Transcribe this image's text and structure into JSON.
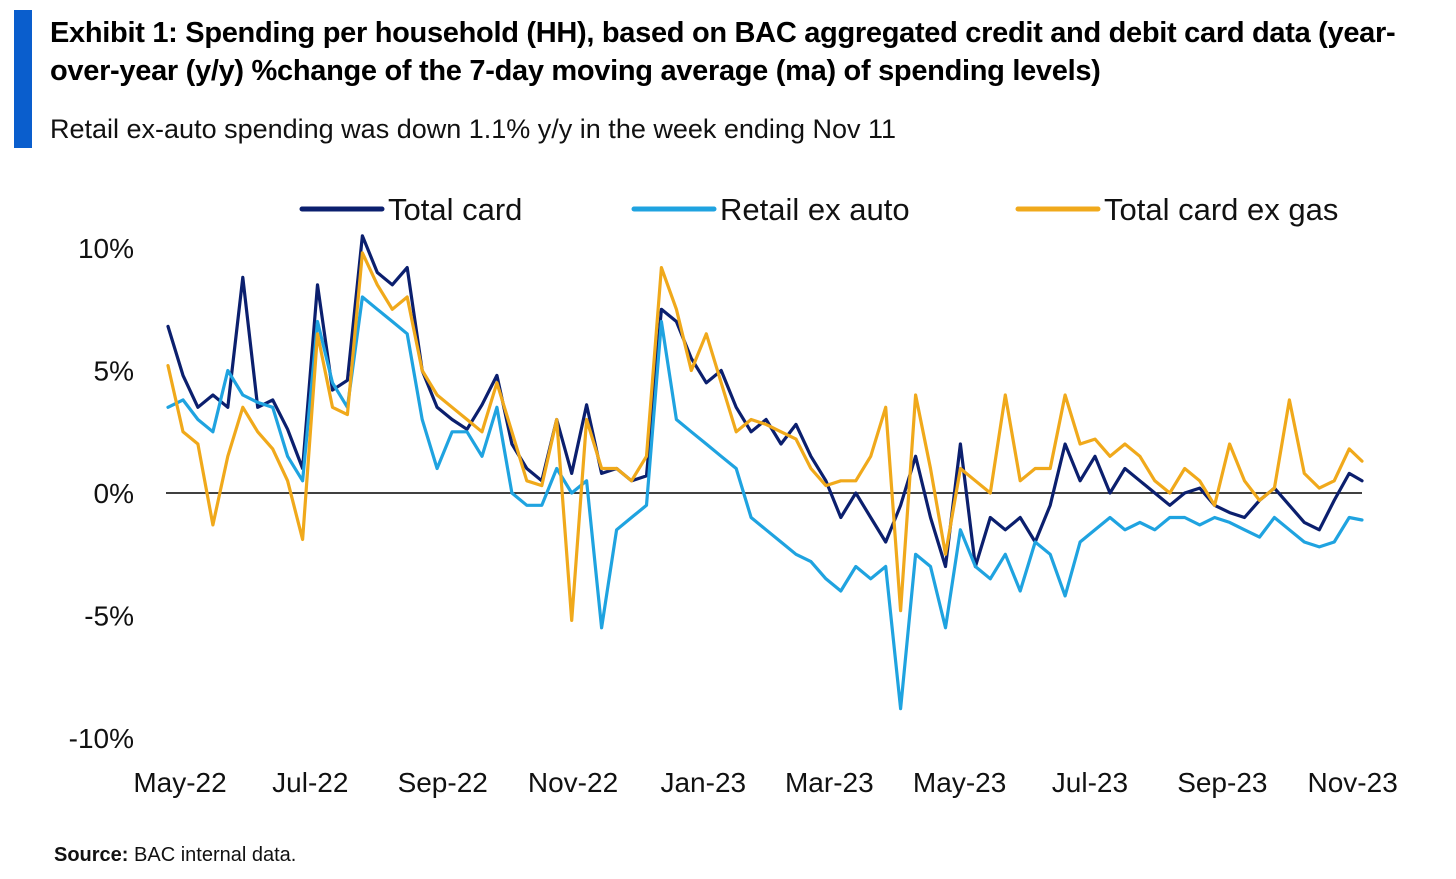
{
  "header": {
    "title": "Exhibit 1: Spending per household (HH), based on BAC aggregated credit and debit card data (year-over-year (y/y)  %change of the 7-day moving average (ma)  of spending levels)",
    "subtitle": "Retail ex-auto spending was down 1.1% y/y in the week ending Nov 11"
  },
  "footer": {
    "source_label": "Source:",
    "source_text": "BAC internal data."
  },
  "colors": {
    "accent": "#0a5ecd",
    "total_card": "#0b1f6e",
    "retail_ex_auto": "#1fa3e0",
    "total_card_ex_gas": "#f0a91b"
  },
  "chart_data": {
    "type": "line",
    "title": "",
    "xlabel": "",
    "ylabel": "",
    "ylim": [
      -10,
      10
    ],
    "y_ticks": [
      10,
      5,
      0,
      -5,
      -10
    ],
    "y_tick_labels": [
      "10%",
      "5%",
      "0%",
      "-5%",
      "-10%"
    ],
    "x_tick_labels": [
      "May-22",
      "Jul-22",
      "Sep-22",
      "Nov-22",
      "Jan-23",
      "Mar-23",
      "May-23",
      "Jul-23",
      "Sep-23",
      "Nov-23"
    ],
    "zero_line": true,
    "grid": false,
    "legend_position": "top",
    "x": [
      "2022-05-01",
      "2022-05-08",
      "2022-05-15",
      "2022-05-22",
      "2022-05-29",
      "2022-06-05",
      "2022-06-12",
      "2022-06-19",
      "2022-06-26",
      "2022-07-03",
      "2022-07-10",
      "2022-07-17",
      "2022-07-24",
      "2022-07-31",
      "2022-08-07",
      "2022-08-14",
      "2022-08-21",
      "2022-08-28",
      "2022-09-04",
      "2022-09-11",
      "2022-09-18",
      "2022-09-25",
      "2022-10-02",
      "2022-10-09",
      "2022-10-16",
      "2022-10-23",
      "2022-10-30",
      "2022-11-06",
      "2022-11-13",
      "2022-11-20",
      "2022-11-27",
      "2022-12-04",
      "2022-12-11",
      "2022-12-18",
      "2022-12-25",
      "2023-01-01",
      "2023-01-08",
      "2023-01-15",
      "2023-01-22",
      "2023-01-29",
      "2023-02-05",
      "2023-02-12",
      "2023-02-19",
      "2023-02-26",
      "2023-03-05",
      "2023-03-12",
      "2023-03-19",
      "2023-03-26",
      "2023-04-02",
      "2023-04-09",
      "2023-04-16",
      "2023-04-23",
      "2023-04-30",
      "2023-05-07",
      "2023-05-14",
      "2023-05-21",
      "2023-05-28",
      "2023-06-04",
      "2023-06-11",
      "2023-06-18",
      "2023-06-25",
      "2023-07-02",
      "2023-07-09",
      "2023-07-16",
      "2023-07-23",
      "2023-07-30",
      "2023-08-06",
      "2023-08-13",
      "2023-08-20",
      "2023-08-27",
      "2023-09-03",
      "2023-09-10",
      "2023-09-17",
      "2023-09-24",
      "2023-10-01",
      "2023-10-08",
      "2023-10-15",
      "2023-10-22",
      "2023-10-29",
      "2023-11-05",
      "2023-11-11"
    ],
    "series": [
      {
        "name": "Total card",
        "color": "#0b1f6e",
        "values": [
          6.8,
          4.8,
          3.5,
          4.0,
          3.5,
          8.8,
          3.5,
          3.8,
          2.6,
          1.0,
          8.5,
          4.2,
          4.6,
          10.5,
          9.0,
          8.5,
          9.2,
          5.0,
          3.5,
          3.0,
          2.6,
          3.6,
          4.8,
          2.0,
          1.0,
          0.5,
          3.0,
          0.8,
          3.6,
          0.8,
          1.0,
          0.5,
          0.7,
          7.5,
          7.0,
          5.5,
          4.5,
          5.0,
          3.5,
          2.5,
          3.0,
          2.0,
          2.8,
          1.5,
          0.5,
          -1.0,
          0.0,
          -1.0,
          -2.0,
          -0.5,
          1.5,
          -1.0,
          -3.0,
          2.0,
          -3.0,
          -1.0,
          -1.5,
          -1.0,
          -2.0,
          -0.5,
          2.0,
          0.5,
          1.5,
          0.0,
          1.0,
          0.5,
          0.0,
          -0.5,
          0.0,
          0.2,
          -0.5,
          -0.8,
          -1.0,
          -0.3,
          0.2,
          -0.5,
          -1.2,
          -1.5,
          -0.3,
          0.8,
          0.5
        ]
      },
      {
        "name": "Retail ex auto",
        "color": "#1fa3e0",
        "values": [
          3.5,
          3.8,
          3.0,
          2.5,
          5.0,
          4.0,
          3.7,
          3.5,
          1.5,
          0.5,
          7.0,
          4.5,
          3.5,
          8.0,
          7.5,
          7.0,
          6.5,
          3.0,
          1.0,
          2.5,
          2.5,
          1.5,
          3.5,
          0.0,
          -0.5,
          -0.5,
          1.0,
          0.0,
          0.5,
          -5.5,
          -1.5,
          -1.0,
          -0.5,
          7.0,
          3.0,
          2.5,
          2.0,
          1.5,
          1.0,
          -1.0,
          -1.5,
          -2.0,
          -2.5,
          -2.8,
          -3.5,
          -4.0,
          -3.0,
          -3.5,
          -3.0,
          -8.8,
          -2.5,
          -3.0,
          -5.5,
          -1.5,
          -3.0,
          -3.5,
          -2.5,
          -4.0,
          -2.0,
          -2.5,
          -4.2,
          -2.0,
          -1.5,
          -1.0,
          -1.5,
          -1.2,
          -1.5,
          -1.0,
          -1.0,
          -1.3,
          -1.0,
          -1.2,
          -1.5,
          -1.8,
          -1.0,
          -1.5,
          -2.0,
          -2.2,
          -2.0,
          -1.0,
          -1.1
        ]
      },
      {
        "name": "Total card ex gas",
        "color": "#f0a91b",
        "values": [
          5.2,
          2.5,
          2.0,
          -1.3,
          1.5,
          3.5,
          2.5,
          1.8,
          0.5,
          -1.9,
          6.5,
          3.5,
          3.2,
          9.8,
          8.5,
          7.5,
          8.0,
          5.0,
          4.0,
          3.5,
          3.0,
          2.5,
          4.5,
          2.5,
          0.5,
          0.3,
          3.0,
          -5.2,
          3.0,
          1.0,
          1.0,
          0.5,
          1.5,
          9.2,
          7.5,
          5.0,
          6.5,
          4.5,
          2.5,
          3.0,
          2.8,
          2.5,
          2.2,
          1.0,
          0.3,
          0.5,
          0.5,
          1.5,
          3.5,
          -4.8,
          4.0,
          1.0,
          -2.5,
          1.0,
          0.5,
          0.0,
          4.0,
          0.5,
          1.0,
          1.0,
          4.0,
          2.0,
          2.2,
          1.5,
          2.0,
          1.5,
          0.5,
          0.0,
          1.0,
          0.5,
          -0.5,
          2.0,
          0.5,
          -0.3,
          0.2,
          3.8,
          0.8,
          0.2,
          0.5,
          1.8,
          1.3
        ]
      }
    ]
  }
}
